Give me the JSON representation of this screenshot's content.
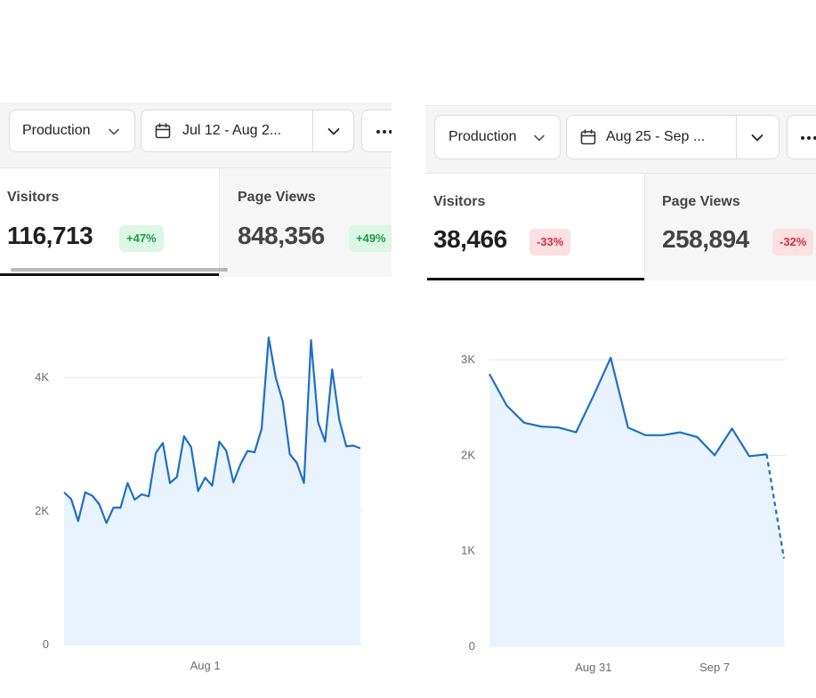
{
  "left": {
    "caption": "",
    "environment": "Production",
    "date_range": "Jul 12 - Aug 2...",
    "metrics": [
      {
        "label": "Visitors",
        "value": "116,713",
        "change": "+47%",
        "trend": "up",
        "active": true
      },
      {
        "label": "Page Views",
        "value": "848,356",
        "change": "+49%",
        "trend": "up",
        "active": false
      }
    ]
  },
  "right": {
    "caption": "",
    "environment": "Production",
    "date_range": "Aug 25 - Sep ...",
    "metrics": [
      {
        "label": "Visitors",
        "value": "38,466",
        "change": "-33%",
        "trend": "down",
        "active": true
      },
      {
        "label": "Page Views",
        "value": "258,894",
        "change": "-32%",
        "trend": "down",
        "active": false
      }
    ]
  },
  "colors": {
    "line": "#1f6fc5",
    "area": "#e8f3fd",
    "grid": "#e7e7e7",
    "positive_badge_bg": "#dcf7e3",
    "positive_badge_text": "#1c9a4a",
    "negative_badge_bg": "#fde0e2",
    "negative_badge_text": "#d0303f"
  },
  "icons": [
    "chevron-down-icon",
    "calendar-icon",
    "more-horizontal-icon"
  ],
  "chart_data": [
    {
      "type": "area",
      "ylim": [
        0,
        4800
      ],
      "y_ticks": [
        0,
        2000,
        4000
      ],
      "y_tick_labels": [
        "0",
        "2K",
        "4K"
      ],
      "x_tick_labels": [
        "Aug 1"
      ],
      "x_tick_index": [
        20
      ],
      "grid": true,
      "series": [
        {
          "values": [
            2280,
            2180,
            1850,
            2280,
            2230,
            2100,
            1820,
            2050,
            2050,
            2420,
            2170,
            2250,
            2220,
            2870,
            3020,
            2420,
            2510,
            3120,
            2960,
            2300,
            2500,
            2380,
            3040,
            2900,
            2430,
            2700,
            2900,
            2880,
            3230,
            4600,
            4000,
            3640,
            2850,
            2720,
            2420,
            4560,
            3330,
            3040,
            4120,
            3370,
            2970,
            2980,
            2940
          ]
        }
      ]
    },
    {
      "type": "area",
      "ylim": [
        0,
        3000
      ],
      "y_ticks": [
        0,
        1000,
        2000,
        3000
      ],
      "y_tick_labels": [
        "0",
        "1K",
        "2K",
        "3K"
      ],
      "x_tick_labels": [
        "Aug 31",
        "Sep 7"
      ],
      "x_tick_index": [
        6,
        13
      ],
      "grid": true,
      "series": [
        {
          "values": [
            2850,
            2520,
            2340,
            2300,
            2290,
            2240,
            2620,
            3020,
            2290,
            2210,
            2210,
            2240,
            2190,
            2000,
            2280,
            1990,
            2010
          ],
          "dashed_tail": [
            2010,
            920
          ]
        }
      ]
    }
  ]
}
